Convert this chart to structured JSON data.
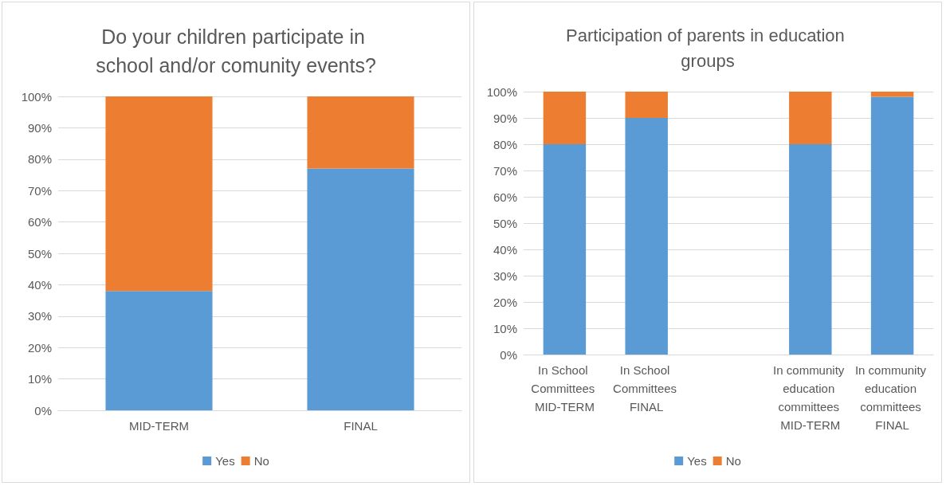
{
  "chart_data": [
    {
      "type": "bar",
      "title": "Do your children participate in school and/or comunity events?",
      "categories": [
        "MID-TERM",
        "FINAL"
      ],
      "stacked": true,
      "series": [
        {
          "name": "Yes",
          "color": "#5b9bd5",
          "values": [
            38,
            77
          ]
        },
        {
          "name": "No",
          "color": "#ed7d31",
          "values": [
            62,
            23
          ]
        }
      ],
      "ylim": [
        0,
        100
      ],
      "yticks": [
        {
          "value": 0,
          "label": "0%"
        },
        {
          "value": 10,
          "label": "10%"
        },
        {
          "value": 20,
          "label": "20%"
        },
        {
          "value": 30,
          "label": "30%"
        },
        {
          "value": 40,
          "label": "40%"
        },
        {
          "value": 50,
          "label": "50%"
        },
        {
          "value": 60,
          "label": "60%"
        },
        {
          "value": 70,
          "label": "70%"
        },
        {
          "value": 80,
          "label": "80%"
        },
        {
          "value": 90,
          "label": "90%"
        },
        {
          "value": 100,
          "label": "100%"
        }
      ],
      "grid": "y",
      "legend": "bottom"
    },
    {
      "type": "bar",
      "title": "Participation of parents in education groups",
      "categories": [
        "In School Committees MID-TERM",
        "In School Committees FINAL",
        null,
        "In community education committees MID-TERM",
        "In community education committees FINAL"
      ],
      "stacked": true,
      "series": [
        {
          "name": "Yes",
          "color": "#5b9bd5",
          "values": [
            80,
            90,
            null,
            80,
            98
          ]
        },
        {
          "name": "No",
          "color": "#ed7d31",
          "values": [
            20,
            10,
            null,
            20,
            2
          ]
        }
      ],
      "ylim": [
        0,
        100
      ],
      "yticks": [
        {
          "value": 0,
          "label": "0%"
        },
        {
          "value": 10,
          "label": "10%"
        },
        {
          "value": 20,
          "label": "20%"
        },
        {
          "value": 30,
          "label": "30%"
        },
        {
          "value": 40,
          "label": "40%"
        },
        {
          "value": 50,
          "label": "50%"
        },
        {
          "value": 60,
          "label": "60%"
        },
        {
          "value": 70,
          "label": "70%"
        },
        {
          "value": 80,
          "label": "80%"
        },
        {
          "value": 90,
          "label": "90%"
        },
        {
          "value": 100,
          "label": "100%"
        }
      ],
      "grid": "y",
      "legend": "bottom"
    }
  ]
}
